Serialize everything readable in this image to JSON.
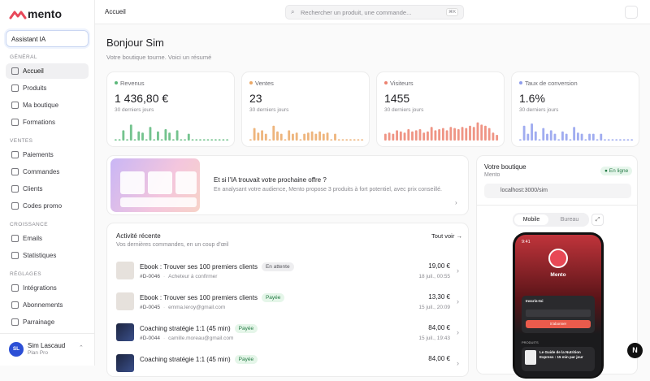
{
  "sidebar": {
    "brand": "mento",
    "assistant": "Assistant IA",
    "sections": [
      {
        "title": "GÉNÉRAL",
        "items": [
          "Accueil",
          "Produits",
          "Ma boutique",
          "Formations"
        ]
      },
      {
        "title": "VENTES",
        "items": [
          "Paiements",
          "Commandes",
          "Clients",
          "Codes promo"
        ]
      },
      {
        "title": "CROISSANCE",
        "items": [
          "Emails",
          "Statistiques"
        ]
      },
      {
        "title": "RÉGLAGES",
        "items": [
          "Intégrations",
          "Abonnements",
          "Parrainage"
        ]
      }
    ],
    "user": {
      "initials": "SL",
      "name": "Sim Lascaud",
      "plan": "Plan Pro"
    }
  },
  "topbar": {
    "breadcrumb": "Accueil",
    "search": "Rechercher un produit, une commande...",
    "shortcut": "⌘K"
  },
  "greeting": {
    "title": "Bonjour Sim",
    "subtitle": "Votre boutique tourne. Voici un résumé"
  },
  "stats": [
    {
      "label": "Revenus",
      "value": "1 436,80 €",
      "period": "30 derniers jours",
      "color": "#5cb87a",
      "bars": [
        6,
        6,
        45,
        6,
        70,
        6,
        40,
        35,
        6,
        60,
        6,
        40,
        6,
        50,
        35,
        6,
        45,
        6,
        6,
        30,
        6,
        6,
        6,
        6,
        6,
        6,
        6,
        6,
        6,
        6
      ]
    },
    {
      "label": "Ventes",
      "value": "23",
      "period": "30 derniers jours",
      "color": "#eba866",
      "bars": [
        6,
        55,
        35,
        45,
        30,
        6,
        65,
        40,
        30,
        6,
        45,
        30,
        35,
        6,
        30,
        35,
        40,
        30,
        40,
        30,
        35,
        6,
        30,
        6,
        6,
        6,
        6,
        6,
        6,
        6
      ]
    },
    {
      "label": "Visiteurs",
      "value": "1455",
      "period": "30 derniers jours",
      "color": "#ec8270",
      "bars": [
        30,
        35,
        30,
        45,
        40,
        35,
        50,
        40,
        45,
        50,
        35,
        40,
        60,
        45,
        50,
        55,
        45,
        60,
        55,
        50,
        60,
        55,
        65,
        60,
        80,
        70,
        65,
        55,
        35,
        25
      ]
    },
    {
      "label": "Taux de conversion",
      "value": "1.6%",
      "period": "30 derniers jours",
      "color": "#8f9ded",
      "bars": [
        6,
        65,
        30,
        75,
        40,
        6,
        55,
        30,
        45,
        30,
        6,
        40,
        30,
        6,
        60,
        35,
        30,
        6,
        30,
        30,
        6,
        30,
        6,
        6,
        6,
        6,
        6,
        6,
        6,
        6
      ]
    }
  ],
  "promo": {
    "title": "Et si l'IA trouvait votre prochaine offre ?",
    "text": "En analysant votre audience, Mento propose 3 produits à fort potentiel, avec prix conseillé."
  },
  "activity": {
    "title": "Activité récente",
    "link": "Tout voir",
    "subtitle": "Vos dernières commandes, en un coup d'œil",
    "rows": [
      {
        "product": "Ebook : Trouver ses 100 premiers clients",
        "status": "En attente",
        "order": "#D-0046",
        "customer": "Acheteur à confirmer",
        "amount": "19,00 €",
        "date": "18 juil., 00:55"
      },
      {
        "product": "Ebook : Trouver ses 100 premiers clients",
        "status": "Payée",
        "order": "#D-0045",
        "customer": "emma.leroy@gmail.com",
        "amount": "13,30 €",
        "date": "15 juil., 20:09"
      },
      {
        "product": "Coaching stratégie 1:1 (45 min)",
        "status": "Payée",
        "order": "#D-0044",
        "customer": "camille.moreau@gmail.com",
        "amount": "84,00 €",
        "date": "15 juil., 19:43"
      },
      {
        "product": "Coaching stratégie 1:1 (45 min)",
        "status": "Payée",
        "amount": "84,00 €"
      }
    ]
  },
  "shop": {
    "title": "Votre boutique",
    "subtitle": "Mento",
    "badge": "En ligne",
    "url": "localhost:3000/sim",
    "tabs": [
      "Mobile",
      "Bureau"
    ],
    "phone": {
      "time": "9:41",
      "name": "Mento",
      "signup": "Inscris-toi",
      "button": "S'abonner",
      "section": "PRODUITS",
      "product": "Le Guide de la Nutrition Express : 15 min par jour"
    }
  }
}
